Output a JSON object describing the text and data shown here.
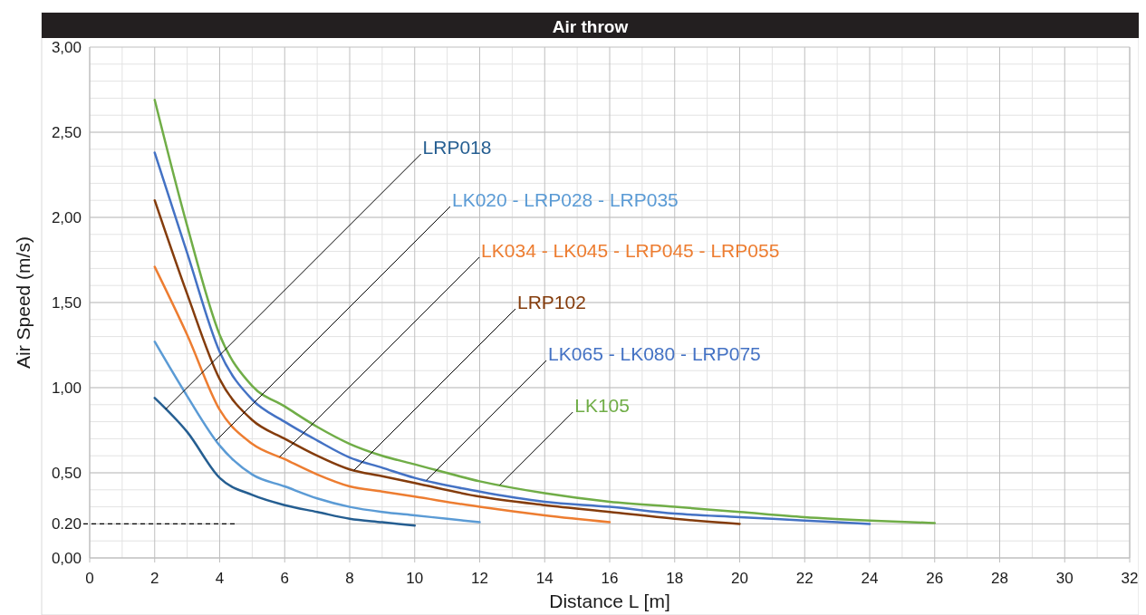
{
  "chart_data": {
    "type": "line",
    "title": "Air throw",
    "xlabel": "Distance L [m]",
    "ylabel": "Air Speed (m/s)",
    "xlim": [
      0,
      32
    ],
    "xticks": [
      0,
      2,
      4,
      6,
      8,
      10,
      12,
      14,
      16,
      18,
      20,
      22,
      24,
      26,
      28,
      30,
      32
    ],
    "ylim": [
      0,
      3
    ],
    "yticks": [
      {
        "value": 0,
        "label": "0,00"
      },
      {
        "value": 0.2,
        "label": "0.20"
      },
      {
        "value": 0.5,
        "label": "0,50"
      },
      {
        "value": 1,
        "label": "1,00"
      },
      {
        "value": 1.5,
        "label": "1,50"
      },
      {
        "value": 2,
        "label": "2,00"
      },
      {
        "value": 2.5,
        "label": "2,50"
      },
      {
        "value": 3,
        "label": "3,00"
      }
    ],
    "grid": true,
    "marker": "none",
    "line_style": "solid",
    "ref_lines": [
      {
        "axis": "y",
        "value": 0.2,
        "color": "#000000",
        "line_style": "dashed"
      }
    ],
    "series": [
      {
        "name": "LRP018",
        "color": "#255e91",
        "x": [
          2,
          3,
          4,
          5,
          6,
          7,
          8,
          9,
          10
        ],
        "values": [
          0.94,
          0.74,
          0.47,
          0.37,
          0.31,
          0.27,
          0.23,
          0.21,
          0.19
        ]
      },
      {
        "name": "LK020 - LRP028 - LRP035",
        "color": "#5b9bd5",
        "x": [
          2,
          3,
          4,
          5,
          6,
          7,
          8,
          9,
          10,
          11,
          12
        ],
        "values": [
          1.27,
          0.95,
          0.66,
          0.49,
          0.42,
          0.35,
          0.3,
          0.27,
          0.25,
          0.23,
          0.21
        ]
      },
      {
        "name": "LK034 - LK045 - LRP045 - LRP055",
        "color": "#ed7d31",
        "x": [
          2,
          3,
          4,
          5,
          6,
          7,
          8,
          9,
          10,
          12,
          14,
          16
        ],
        "values": [
          1.71,
          1.31,
          0.87,
          0.67,
          0.58,
          0.49,
          0.42,
          0.39,
          0.36,
          0.3,
          0.25,
          0.21
        ]
      },
      {
        "name": "LRP102",
        "color": "#843c0c",
        "x": [
          2,
          3,
          4,
          5,
          6,
          7,
          8,
          9,
          10,
          12,
          14,
          16,
          18,
          20
        ],
        "values": [
          2.1,
          1.55,
          1.05,
          0.81,
          0.7,
          0.6,
          0.52,
          0.48,
          0.44,
          0.36,
          0.31,
          0.27,
          0.23,
          0.2
        ]
      },
      {
        "name": "LK065 - LK080 - LRP075",
        "color": "#4472c4",
        "x": [
          2,
          3,
          4,
          5,
          6,
          7,
          8,
          9,
          10,
          12,
          14,
          16,
          18,
          20,
          22,
          24
        ],
        "values": [
          2.38,
          1.79,
          1.21,
          0.93,
          0.8,
          0.69,
          0.59,
          0.53,
          0.47,
          0.39,
          0.33,
          0.3,
          0.26,
          0.24,
          0.22,
          0.2
        ]
      },
      {
        "name": "LK105",
        "color": "#70ad47",
        "x": [
          2,
          3,
          4,
          5,
          6,
          7,
          8,
          9,
          10,
          12,
          14,
          16,
          18,
          20,
          22,
          24,
          26
        ],
        "values": [
          2.69,
          1.95,
          1.31,
          1.01,
          0.89,
          0.77,
          0.67,
          0.6,
          0.55,
          0.45,
          0.38,
          0.33,
          0.3,
          0.27,
          0.24,
          0.22,
          0.205
        ]
      }
    ]
  }
}
